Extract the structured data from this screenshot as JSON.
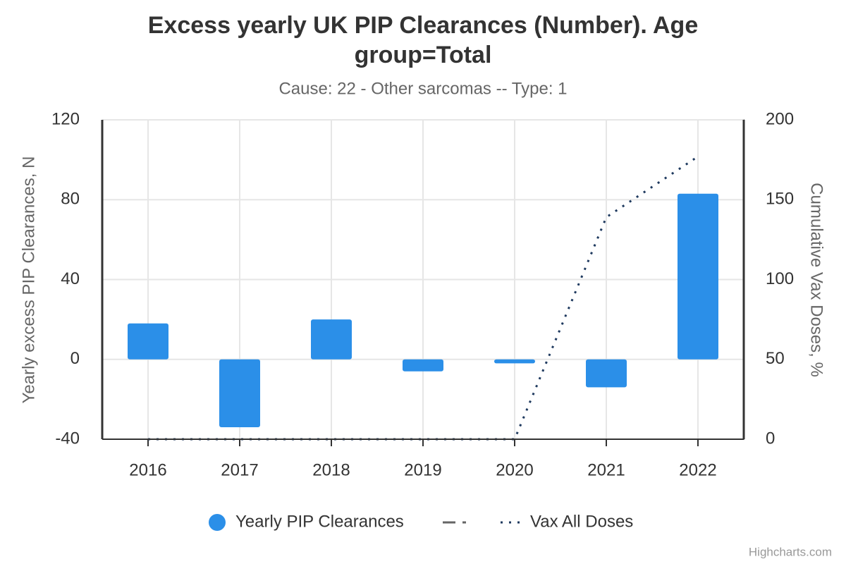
{
  "chart_data": {
    "type": "bar",
    "title": "Excess yearly UK PIP Clearances (Number). Age group=Total",
    "subtitle": "Cause: 22 - Other sarcomas -- Type: 1",
    "y_label": "Yearly excess PIP Clearances, N",
    "y2_label": "Cumulative Vax Doses, %",
    "categories": [
      "2016",
      "2017",
      "2018",
      "2019",
      "2020",
      "2021",
      "2022"
    ],
    "series": [
      {
        "name": "Yearly PIP Clearances",
        "type": "bar",
        "color": "#2b8fe8",
        "values": [
          18,
          -34,
          20,
          -6,
          -2,
          -14,
          83
        ]
      },
      {
        "name": "Vax All Doses",
        "type": "line",
        "axis": "y2",
        "color": "#1f3a5f",
        "values": [
          0,
          0,
          0,
          0,
          0,
          139,
          177
        ]
      }
    ],
    "ylim": [
      -40,
      120
    ],
    "yticks": [
      -40,
      0,
      40,
      80,
      120
    ],
    "y2lim": [
      0,
      200
    ],
    "y2ticks": [
      0,
      50,
      100,
      150,
      200
    ],
    "grid": true,
    "credits": "Highcharts.com"
  }
}
